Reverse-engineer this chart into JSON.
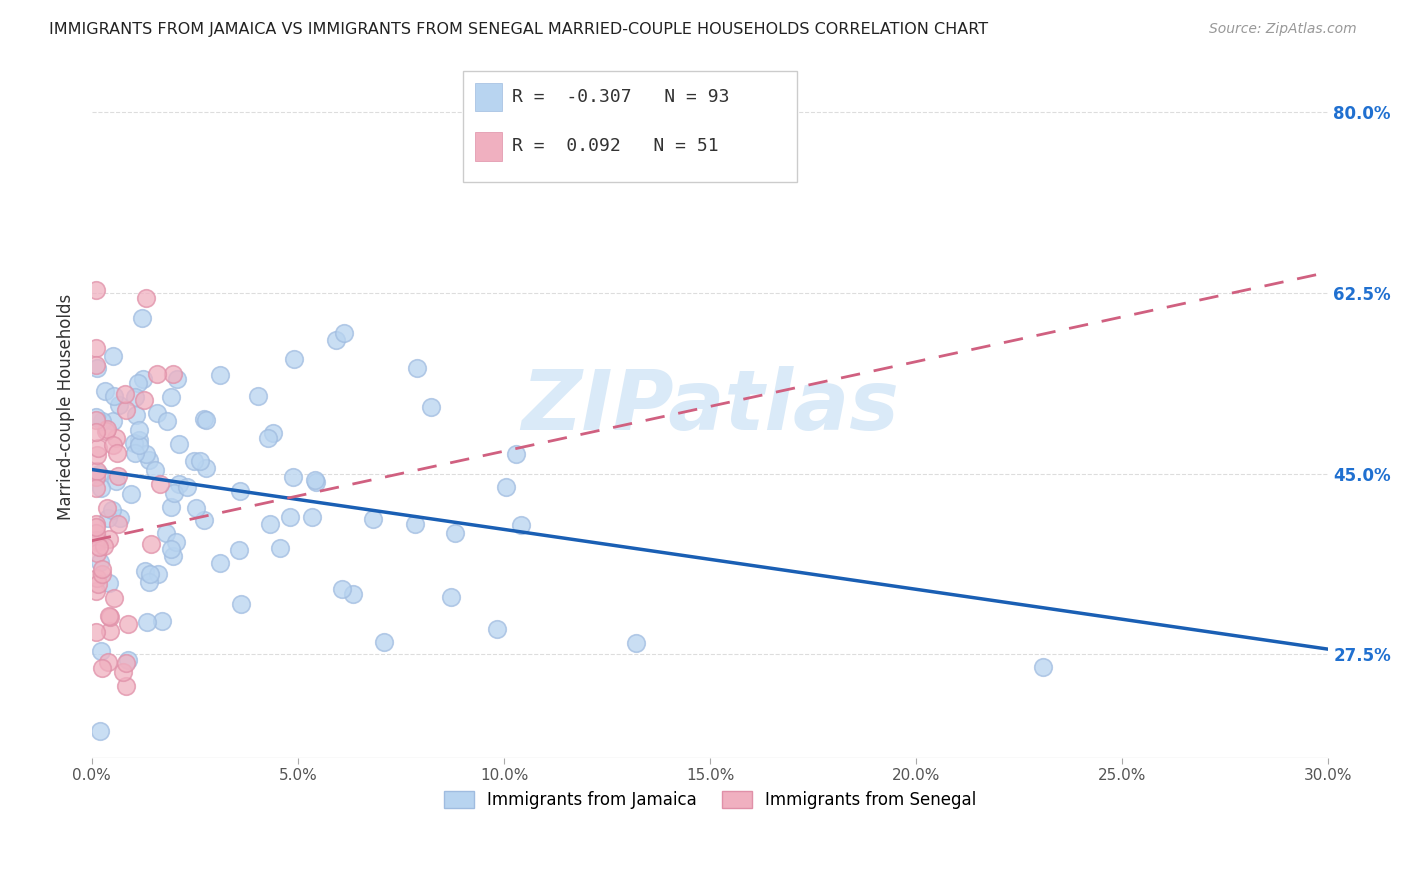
{
  "title": "IMMIGRANTS FROM JAMAICA VS IMMIGRANTS FROM SENEGAL MARRIED-COUPLE HOUSEHOLDS CORRELATION CHART",
  "source": "Source: ZipAtlas.com",
  "ylabel": "Married-couple Households",
  "right_yticks": [
    0.275,
    0.45,
    0.625,
    0.8
  ],
  "right_ytick_labels": [
    "27.5%",
    "45.0%",
    "62.5%",
    "80.0%"
  ],
  "legend_labels_bottom": [
    "Immigrants from Jamaica",
    "Immigrants from Senegal"
  ],
  "jamaica_face_color": "#b8d4f0",
  "jamaica_edge_color": "#a0bce0",
  "senegal_face_color": "#f0b0c0",
  "senegal_edge_color": "#e090a8",
  "jamaica_line_color": "#1a5fb4",
  "senegal_line_color": "#d06080",
  "watermark_color": "#daeaf8",
  "jamaica_R": -0.307,
  "jamaica_N": 93,
  "senegal_R": 0.092,
  "senegal_N": 51,
  "xmin": 0.0,
  "xmax": 0.3,
  "ymin": 0.175,
  "ymax": 0.855,
  "grid_color": "#dddddd",
  "background_color": "#ffffff",
  "x_tick_positions": [
    0.0,
    0.05,
    0.1,
    0.15,
    0.2,
    0.25,
    0.3
  ],
  "x_tick_labels": [
    "0.0%",
    "5.0%",
    "10.0%",
    "15.0%",
    "20.0%",
    "25.0%",
    "30.0%"
  ]
}
